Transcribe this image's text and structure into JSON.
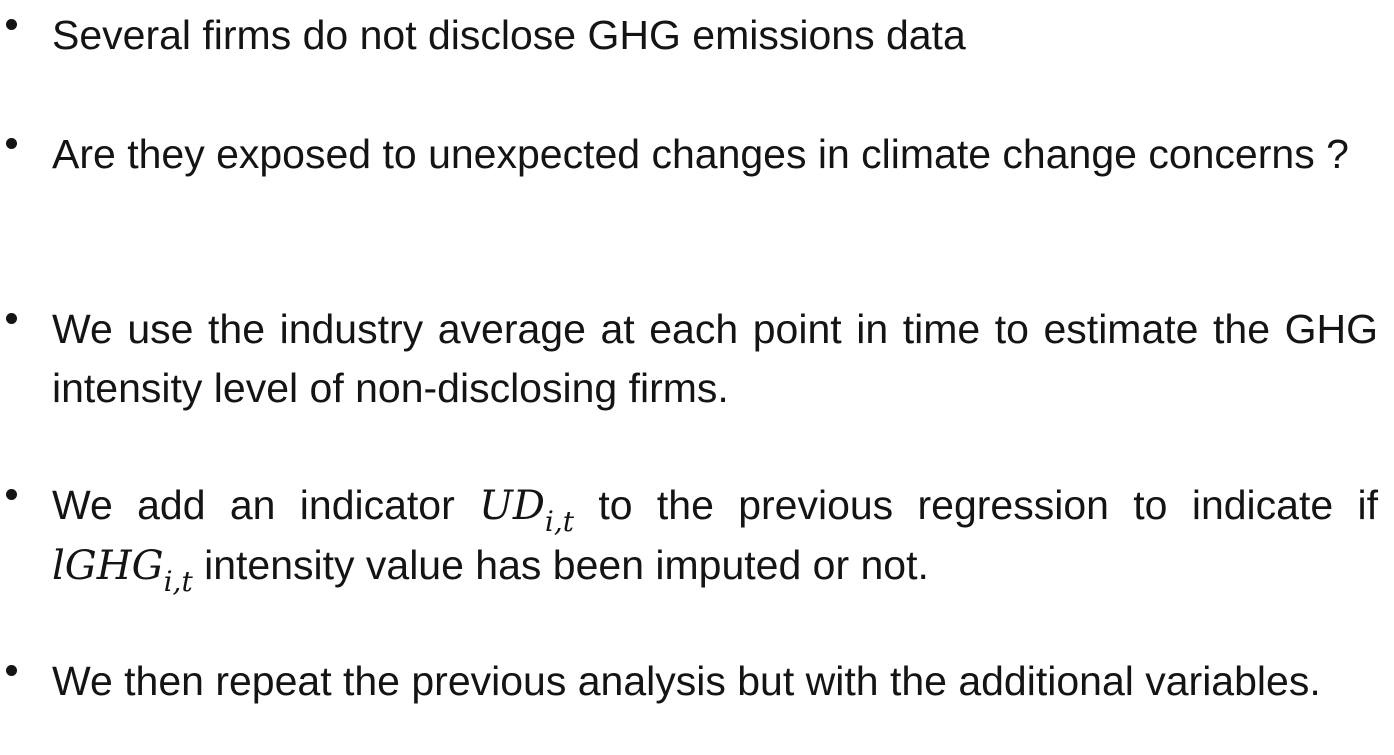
{
  "bullets": [
    {
      "text": "Several firms do not disclose GHG emissions data"
    },
    {
      "text": "Are they exposed to unexpected changes in climate change concerns ?"
    },
    {
      "text": "We use the industry average at each point in time to estimate the GHG intensity level of non-disclosing firms."
    },
    {
      "part1": "We add an indicator ",
      "math1_base": "UD",
      "math1_sub": "i,t",
      "part2": " to the previous regression to indicate if ",
      "math2_base": "lGHG",
      "math2_sub": "i,t",
      "part3": " intensity value has been imputed or not."
    },
    {
      "text": "We then repeat the previous analysis but with the additional variables."
    }
  ]
}
